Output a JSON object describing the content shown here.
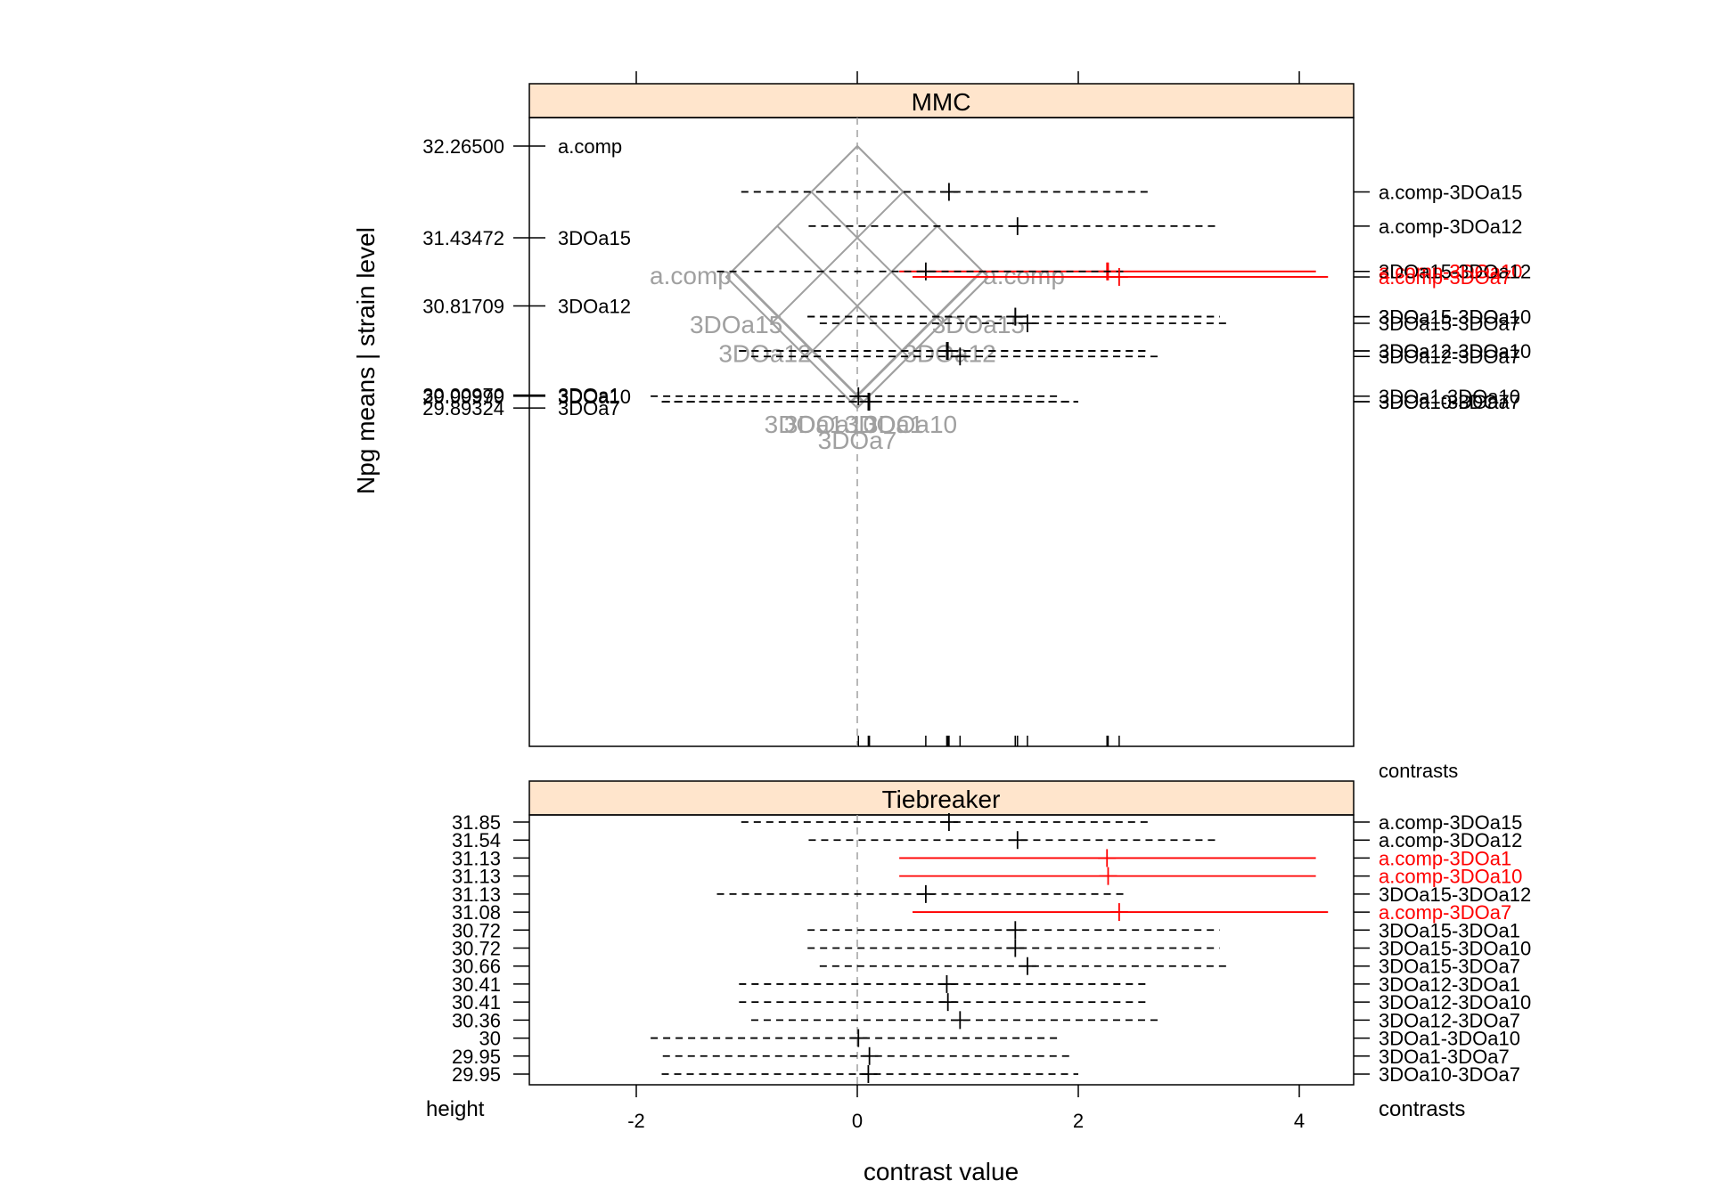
{
  "chart_data": [
    {
      "type": "mmc",
      "panel_title": "MMC",
      "ylabel": "Npg means  |  strain level",
      "means": [
        {
          "label": "a.comp",
          "value": "32.26500",
          "height": 32.265
        },
        {
          "label": "3DOa15",
          "value": "31.43472",
          "height": 31.43472
        },
        {
          "label": "3DOa12",
          "value": "30.81709",
          "height": 30.81709
        },
        {
          "label": "3DOa1",
          "value": "30.00970",
          "height": 30.0097
        },
        {
          "label": "3DOa10",
          "value": "29.99999",
          "height": 29.99999
        },
        {
          "label": "3DOa7",
          "value": "29.89324",
          "height": 29.89324
        }
      ],
      "diamond_labels": [
        "a.comp",
        "a.comp",
        "3DOa15",
        "3DOa15",
        "3DOa12",
        "3DOa12",
        "3DOa1",
        "3DOa10",
        "3DOa1",
        "3DOa10",
        "3DOa7"
      ],
      "contrasts_label": "contrasts",
      "xlim": [
        -3,
        4.5
      ],
      "ylim": [
        29.55,
        32.55
      ]
    },
    {
      "type": "tiebreaker",
      "panel_title": "Tiebreaker",
      "left_label": "height",
      "right_label": "contrasts",
      "xlabel": "contrast value",
      "xticks": [
        "-2",
        "0",
        "2",
        "4"
      ],
      "xtick_values": [
        -2,
        0,
        2,
        4
      ],
      "contrasts": [
        {
          "name": "a.comp-3DOa15",
          "height": "31.85",
          "estimate": 0.83,
          "lower": -1.05,
          "upper": 2.66,
          "significant": false
        },
        {
          "name": "a.comp-3DOa12",
          "height": "31.54",
          "estimate": 1.45,
          "lower": -0.44,
          "upper": 3.28,
          "significant": false
        },
        {
          "name": "a.comp-3DOa1",
          "height": "31.13",
          "estimate": 2.26,
          "lower": 0.38,
          "upper": 4.15,
          "significant": true
        },
        {
          "name": "a.comp-3DOa10",
          "height": "31.13",
          "estimate": 2.27,
          "lower": 0.38,
          "upper": 4.15,
          "significant": true
        },
        {
          "name": "3DOa15-3DOa12",
          "height": "31.13",
          "estimate": 0.62,
          "lower": -1.27,
          "upper": 2.44,
          "significant": false
        },
        {
          "name": "a.comp-3DOa7",
          "height": "31.08",
          "estimate": 2.37,
          "lower": 0.5,
          "upper": 4.26,
          "significant": true
        },
        {
          "name": "3DOa15-3DOa1",
          "height": "30.72",
          "estimate": 1.43,
          "lower": -0.45,
          "upper": 3.28,
          "significant": false
        },
        {
          "name": "3DOa15-3DOa10",
          "height": "30.72",
          "estimate": 1.43,
          "lower": -0.45,
          "upper": 3.28,
          "significant": false
        },
        {
          "name": "3DOa15-3DOa7",
          "height": "30.66",
          "estimate": 1.54,
          "lower": -0.34,
          "upper": 3.38,
          "significant": false
        },
        {
          "name": "3DOa12-3DOa1",
          "height": "30.41",
          "estimate": 0.81,
          "lower": -1.07,
          "upper": 2.65,
          "significant": false
        },
        {
          "name": "3DOa12-3DOa10",
          "height": "30.41",
          "estimate": 0.82,
          "lower": -1.07,
          "upper": 2.65,
          "significant": false
        },
        {
          "name": "3DOa12-3DOa7",
          "height": "30.36",
          "estimate": 0.93,
          "lower": -0.96,
          "upper": 2.76,
          "significant": false
        },
        {
          "name": "3DOa1-3DOa10",
          "height": "30",
          "estimate": 0.01,
          "lower": -1.87,
          "upper": 1.85,
          "significant": false
        },
        {
          "name": "3DOa1-3DOa7",
          "height": "29.95",
          "estimate": 0.11,
          "lower": -1.76,
          "upper": 1.95,
          "significant": false
        },
        {
          "name": "3DOa10-3DOa7",
          "height": "29.95",
          "estimate": 0.1,
          "lower": -1.77,
          "upper": 2.0,
          "significant": false
        }
      ]
    }
  ],
  "colors": {
    "strip": "#FFE5CC",
    "significant": "#FF0000",
    "insignificant": "#000000",
    "diamond": "#A0A0A0",
    "axis": "#000000"
  }
}
